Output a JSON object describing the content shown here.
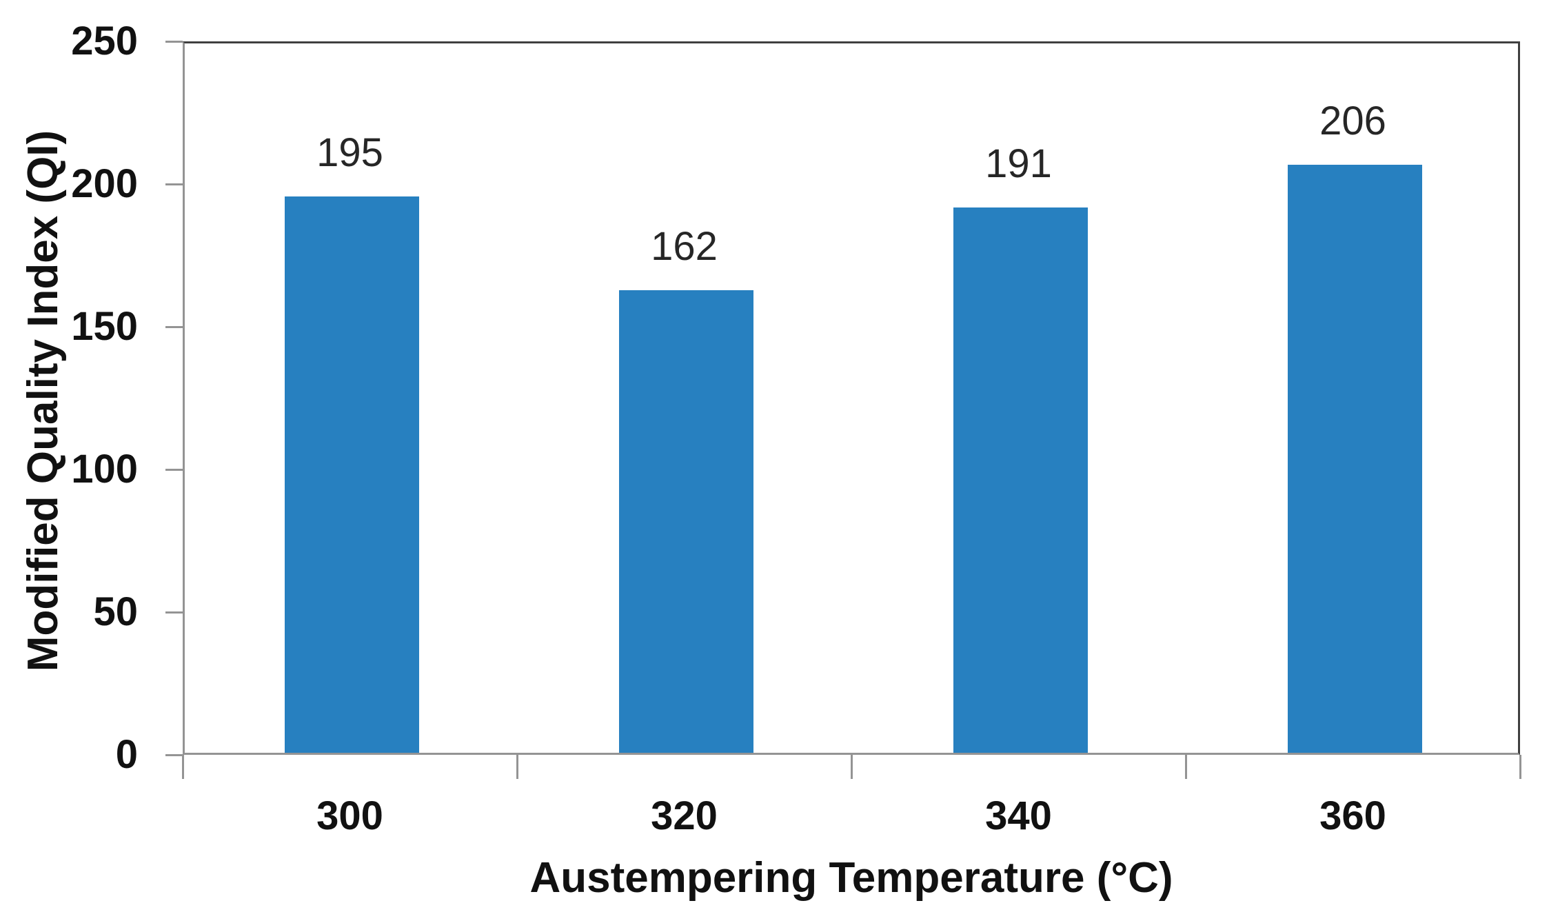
{
  "chart_data": {
    "type": "bar",
    "title": "",
    "categories": [
      "300",
      "320",
      "340",
      "360"
    ],
    "values": [
      195,
      162,
      191,
      206
    ],
    "data_labels": [
      "195",
      "162",
      "191",
      "206"
    ],
    "xlabel": "Austempering Temperature (°C)",
    "ylabel": "Modified Quality Index (QI)",
    "ylim": [
      0,
      250
    ],
    "y_ticks": [
      0,
      50,
      100,
      150,
      200,
      250
    ],
    "grid": false,
    "legend_position": "none",
    "bar_color": "#2780C0",
    "axis_line_color": "#949494",
    "plot_border_color": "#3f3f3f",
    "label_color": "#111111",
    "value_label_color": "#262626"
  }
}
